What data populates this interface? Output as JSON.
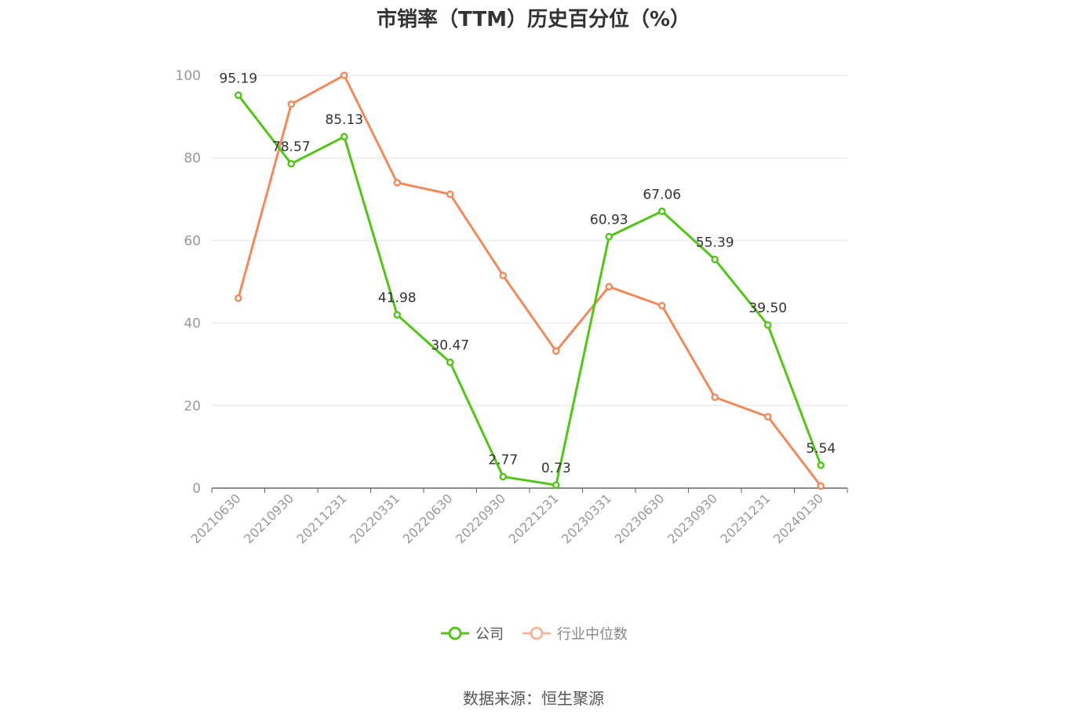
{
  "title": "市销率（TTM）历史百分位（%）",
  "source": "数据来源：恒生聚源",
  "chart_data": {
    "type": "line",
    "title": "市销率（TTM）历史百分位（%）",
    "categories": [
      "20210630",
      "20210930",
      "20211231",
      "20220331",
      "20220630",
      "20220930",
      "20221231",
      "20230331",
      "20230630",
      "20230930",
      "20231231",
      "20240130"
    ],
    "ylim": [
      0,
      100
    ],
    "yticks": [
      0,
      20,
      40,
      60,
      80,
      100
    ],
    "grid": true,
    "legend_position": "bottom",
    "series": [
      {
        "name": "公司",
        "color": "#52c41a",
        "values": [
          95.19,
          78.57,
          85.13,
          41.98,
          30.47,
          2.77,
          0.73,
          60.93,
          67.06,
          55.39,
          39.5,
          5.54
        ],
        "labels": [
          "95.19",
          "78.57",
          "85.13",
          "41.98",
          "30.47",
          "2.77",
          "0.73",
          "60.93",
          "67.06",
          "55.39",
          "39.50",
          "5.54"
        ]
      },
      {
        "name": "行业中位数",
        "color": "#f08a5d",
        "values": [
          46,
          93,
          100,
          74,
          71.2,
          51.5,
          33.2,
          48.8,
          44.2,
          22,
          17.3,
          0.5
        ]
      }
    ]
  },
  "colors": {
    "company": "#52c41a",
    "industry": "#f08a5d",
    "industry_legend": "#f5b79b",
    "grid": "#e3e6f0",
    "axis": "#666666",
    "tick_text": "#999999"
  }
}
